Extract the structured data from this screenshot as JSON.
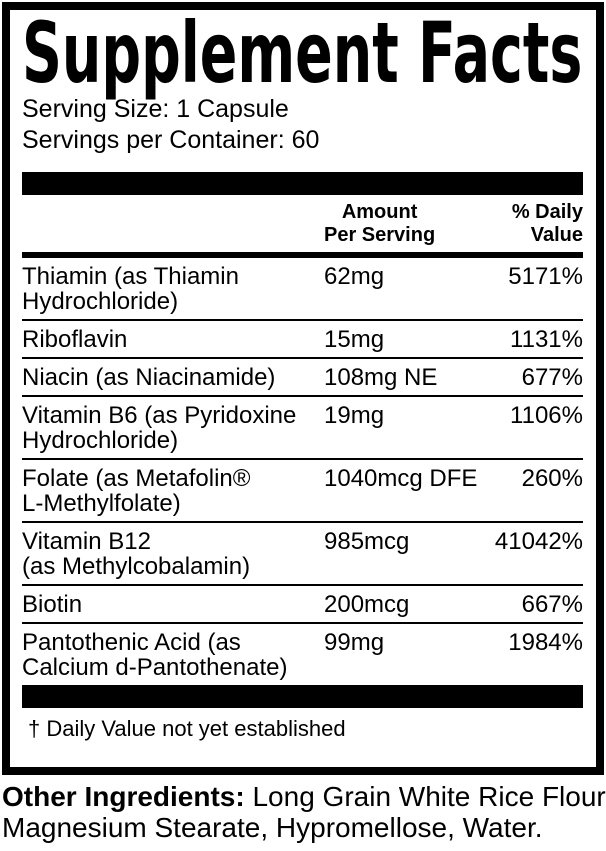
{
  "colors": {
    "ink": "#000000",
    "paper": "#ffffff"
  },
  "panel": {
    "title": "Supplement Facts",
    "serving_size": "Serving Size: 1 Capsule",
    "servings_per_container": "Servings per Container: 60",
    "header": {
      "amount_lines": [
        "Amount",
        "Per Serving"
      ],
      "dv_lines": [
        "% Daily",
        "Value"
      ]
    },
    "rows": [
      {
        "name_lines": [
          "Thiamin (as Thiamin",
          "Hydrochloride)"
        ],
        "amount": "62mg",
        "dv": "5171%"
      },
      {
        "name_lines": [
          "Riboflavin"
        ],
        "amount": "15mg",
        "dv": "1131%"
      },
      {
        "name_lines": [
          "Niacin (as Niacinamide)"
        ],
        "amount": "108mg NE",
        "dv": "677%"
      },
      {
        "name_lines": [
          "Vitamin B6 (as Pyridoxine",
          "Hydrochloride)"
        ],
        "amount": "19mg",
        "dv": "1106%"
      },
      {
        "name_lines": [
          "Folate (as Metafolin®",
          "L-Methylfolate)"
        ],
        "amount": "1040mcg DFE",
        "dv": "260%"
      },
      {
        "name_lines": [
          "Vitamin B12",
          "(as Methylcobalamin)"
        ],
        "amount": "985mcg",
        "dv": "41042%"
      },
      {
        "name_lines": [
          "Biotin"
        ],
        "amount": "200mcg",
        "dv": "667%"
      },
      {
        "name_lines": [
          "Pantothenic Acid (as",
          "Calcium d-Pantothenate)"
        ],
        "amount": "99mg",
        "dv": "1984%"
      }
    ],
    "footnote": "† Daily Value not yet established"
  },
  "other_ingredients": {
    "label": "Other Ingredients:",
    "line1_rest": " Long Grain White Rice Flour,",
    "line2": "Magnesium Stearate, Hypromellose, Water."
  }
}
